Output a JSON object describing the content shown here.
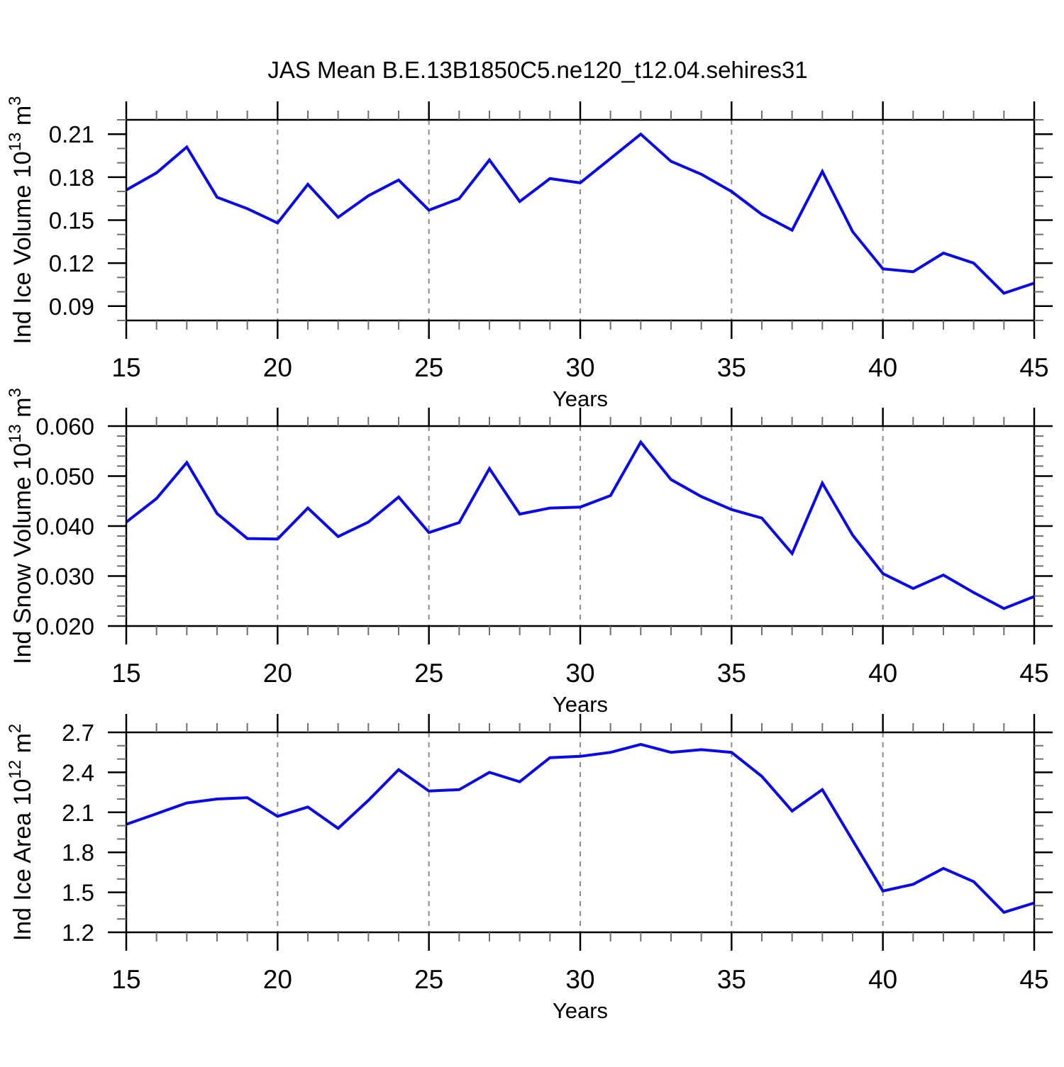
{
  "title": "JAS Mean B.E.13B1850C5.ne120_t12.04.sehires31",
  "colors": {
    "line": "#0a0ae6",
    "axis": "#000000",
    "grid": "#8c8c8c",
    "minor_tick": "#6f6f6f",
    "background": "#ffffff"
  },
  "chart_data": [
    {
      "name": "ice-volume",
      "type": "line",
      "xlabel": "Years",
      "ylabel_segments": [
        {
          "text": "Ind Ice Volume 10",
          "sup": false
        },
        {
          "text": "13",
          "sup": true
        },
        {
          "text": " m",
          "sup": false
        },
        {
          "text": "3",
          "sup": true
        }
      ],
      "x": [
        15,
        16,
        17,
        18,
        19,
        20,
        21,
        22,
        23,
        24,
        25,
        26,
        27,
        28,
        29,
        30,
        31,
        32,
        33,
        34,
        35,
        36,
        37,
        38,
        39,
        40,
        41,
        42,
        43,
        44,
        45
      ],
      "y": [
        0.171,
        0.183,
        0.201,
        0.166,
        0.158,
        0.148,
        0.175,
        0.152,
        0.167,
        0.178,
        0.157,
        0.165,
        0.192,
        0.163,
        0.179,
        0.176,
        0.193,
        0.21,
        0.191,
        0.182,
        0.17,
        0.154,
        0.143,
        0.184,
        0.142,
        0.116,
        0.114,
        0.127,
        0.12,
        0.099,
        0.106
      ],
      "xlim": [
        15,
        45
      ],
      "ylim": [
        0.08,
        0.22
      ],
      "xtick_values": [
        15,
        20,
        25,
        30,
        35,
        40,
        45
      ],
      "xtick_labels": [
        "15",
        "20",
        "25",
        "30",
        "35",
        "40",
        "45"
      ],
      "x_minor_step": 1,
      "ytick_values": [
        0.09,
        0.12,
        0.15,
        0.18,
        0.21
      ],
      "ytick_labels": [
        "0.09",
        "0.12",
        "0.15",
        "0.18",
        "0.21"
      ],
      "y_minor_step": 0.01,
      "grid_x": [
        20,
        25,
        30,
        35,
        40
      ],
      "grid_style": "dashed-vertical"
    },
    {
      "name": "snow-volume",
      "type": "line",
      "xlabel": "Years",
      "ylabel_segments": [
        {
          "text": "Ind Snow Volume 10",
          "sup": false
        },
        {
          "text": "13",
          "sup": true
        },
        {
          "text": " m",
          "sup": false
        },
        {
          "text": "3",
          "sup": true
        }
      ],
      "x": [
        15,
        16,
        17,
        18,
        19,
        20,
        21,
        22,
        23,
        24,
        25,
        26,
        27,
        28,
        29,
        30,
        31,
        32,
        33,
        34,
        35,
        36,
        37,
        38,
        39,
        40,
        41,
        42,
        43,
        44,
        45
      ],
      "y": [
        0.0408,
        0.0455,
        0.0527,
        0.0425,
        0.0375,
        0.0374,
        0.0436,
        0.0379,
        0.0408,
        0.0458,
        0.0387,
        0.0407,
        0.0515,
        0.0424,
        0.0436,
        0.0438,
        0.0461,
        0.0568,
        0.0493,
        0.0459,
        0.0433,
        0.0416,
        0.0345,
        0.0486,
        0.0382,
        0.0305,
        0.0275,
        0.0302,
        0.0267,
        0.0235,
        0.0259
      ],
      "xlim": [
        15,
        45
      ],
      "ylim": [
        0.02,
        0.06
      ],
      "xtick_values": [
        15,
        20,
        25,
        30,
        35,
        40,
        45
      ],
      "xtick_labels": [
        "15",
        "20",
        "25",
        "30",
        "35",
        "40",
        "45"
      ],
      "x_minor_step": 1,
      "ytick_values": [
        0.02,
        0.03,
        0.04,
        0.05,
        0.06
      ],
      "ytick_labels": [
        "0.020",
        "0.030",
        "0.040",
        "0.050",
        "0.060"
      ],
      "y_minor_step": 0.002,
      "grid_x": [
        20,
        25,
        30,
        35,
        40
      ],
      "grid_style": "dashed-vertical"
    },
    {
      "name": "ice-area",
      "type": "line",
      "xlabel": "Years",
      "ylabel_segments": [
        {
          "text": "Ind Ice Area 10",
          "sup": false
        },
        {
          "text": "12",
          "sup": true
        },
        {
          "text": " m",
          "sup": false
        },
        {
          "text": "2",
          "sup": true
        }
      ],
      "x": [
        15,
        16,
        17,
        18,
        19,
        20,
        21,
        22,
        23,
        24,
        25,
        26,
        27,
        28,
        29,
        30,
        31,
        32,
        33,
        34,
        35,
        36,
        37,
        38,
        39,
        40,
        41,
        42,
        43,
        44,
        45
      ],
      "y": [
        2.01,
        2.09,
        2.17,
        2.2,
        2.21,
        2.07,
        2.14,
        1.98,
        2.19,
        2.42,
        2.26,
        2.27,
        2.4,
        2.33,
        2.51,
        2.52,
        2.55,
        2.61,
        2.55,
        2.57,
        2.55,
        2.37,
        2.11,
        2.27,
        1.89,
        1.51,
        1.56,
        1.68,
        1.58,
        1.35,
        1.42
      ],
      "xlim": [
        15,
        45
      ],
      "ylim": [
        1.2,
        2.7
      ],
      "xtick_values": [
        15,
        20,
        25,
        30,
        35,
        40,
        45
      ],
      "xtick_labels": [
        "15",
        "20",
        "25",
        "30",
        "35",
        "40",
        "45"
      ],
      "x_minor_step": 1,
      "ytick_values": [
        1.2,
        1.5,
        1.8,
        2.1,
        2.4,
        2.7
      ],
      "ytick_labels": [
        "1.2",
        "1.5",
        "1.8",
        "2.1",
        "2.4",
        "2.7"
      ],
      "y_minor_step": 0.1,
      "grid_x": [
        20,
        25,
        30,
        35,
        40
      ],
      "grid_style": "dashed-vertical"
    }
  ]
}
